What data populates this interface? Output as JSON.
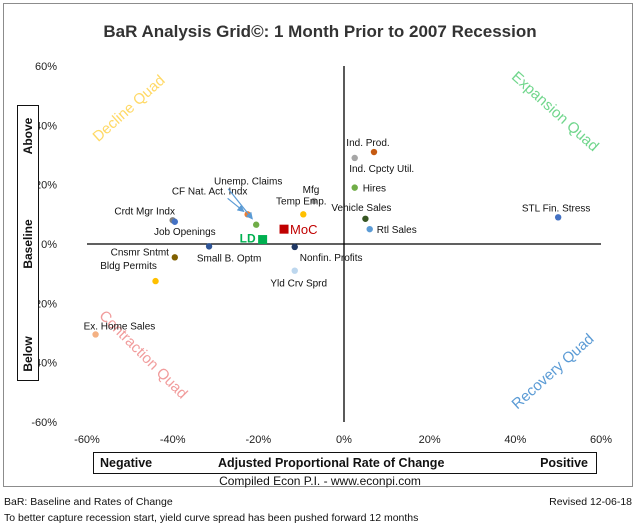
{
  "title": "BaR Analysis Grid©: 1 Month Prior to 2007 Recession",
  "chart_data": {
    "type": "scatter",
    "xlim": [
      -0.6,
      0.6
    ],
    "ylim": [
      -0.6,
      0.6
    ],
    "x_ticks": [
      "-60%",
      "-40%",
      "-20%",
      "0%",
      "20%",
      "40%",
      "60%"
    ],
    "y_ticks": [
      "60%",
      "40%",
      "20%",
      "0%",
      "-20%",
      "-40%",
      "-60%"
    ],
    "grid": false,
    "points": [
      {
        "label": "Ind. Prod.",
        "x": 0.07,
        "y": 0.31,
        "color": "#c55a11"
      },
      {
        "label": "Ind. Cpcty Util.",
        "x": 0.025,
        "y": 0.29,
        "color": "#a6a6a6"
      },
      {
        "label": "Hires",
        "x": 0.025,
        "y": 0.19,
        "color": "#70ad47"
      },
      {
        "label": "Mfg",
        "x": -0.07,
        "y": 0.145,
        "color": "#a6a6a6"
      },
      {
        "label": "Temp Emp.",
        "x": -0.095,
        "y": 0.1,
        "color": "#ffc000"
      },
      {
        "label": "Vehicle Sales",
        "x": 0.05,
        "y": 0.085,
        "color": "#375623"
      },
      {
        "label": "Rtl Sales",
        "x": 0.06,
        "y": 0.05,
        "color": "#5b9bd5"
      },
      {
        "label": "STL Fin. Stress",
        "x": 0.5,
        "y": 0.09,
        "color": "#4472c4"
      },
      {
        "label": "Unemp. Claims",
        "x": -0.205,
        "y": 0.065,
        "color": "#70ad47"
      },
      {
        "label": "CF Nat. Act. Indx",
        "x": -0.225,
        "y": 0.1,
        "color": "#ed7d31"
      },
      {
        "label": "Crdt Mgr Indx",
        "x": -0.4,
        "y": 0.08,
        "color": "#7f7f7f"
      },
      {
        "label": "Job Openings",
        "x": -0.395,
        "y": 0.075,
        "color": "#4472c4"
      },
      {
        "label": "Cnsmr Sntmt",
        "x": -0.395,
        "y": -0.045,
        "color": "#806000"
      },
      {
        "label": "Small B. Optm",
        "x": -0.315,
        "y": -0.008,
        "color": "#2f5597"
      },
      {
        "label": "Nonfin. Profits",
        "x": -0.115,
        "y": -0.01,
        "color": "#203864"
      },
      {
        "label": "Yld Crv Sprd",
        "x": -0.115,
        "y": -0.09,
        "color": "#bdd7ee"
      },
      {
        "label": "Bldg Permits",
        "x": -0.44,
        "y": -0.125,
        "color": "#ffc000"
      },
      {
        "label": "Ex. Home Sales",
        "x": -0.58,
        "y": -0.305,
        "color": "#f4b183"
      },
      {
        "label": "LD",
        "x": -0.19,
        "y": 0.015,
        "color": "#00b050"
      },
      {
        "label": "MoC",
        "x": -0.14,
        "y": 0.05,
        "color": "#c00000"
      }
    ],
    "quadrants": {
      "top_left": {
        "label": "Decline Quad",
        "color": "#ffd966"
      },
      "top_right": {
        "label": "Expansion Quad",
        "color": "#70d68c"
      },
      "bottom_left": {
        "label": "Contraction Quad",
        "color": "#f19c9c"
      },
      "bottom_right": {
        "label": "Recovery Quad",
        "color": "#5b9bd5"
      }
    }
  },
  "axes": {
    "y_above": "Above",
    "y_baseline": "Baseline",
    "y_below": "Below",
    "x_negative": "Negative",
    "x_center": "Adjusted Proportional Rate of Change",
    "x_positive": "Positive"
  },
  "footer": {
    "compiled": "Compiled Econ P.I. - www.econpi.com",
    "legend_note": "BaR: Baseline and Rates of Change",
    "revised": "Revised 12-06-18",
    "note": "To better capture recession start, yield curve spread has been pushed forward 12 months"
  }
}
